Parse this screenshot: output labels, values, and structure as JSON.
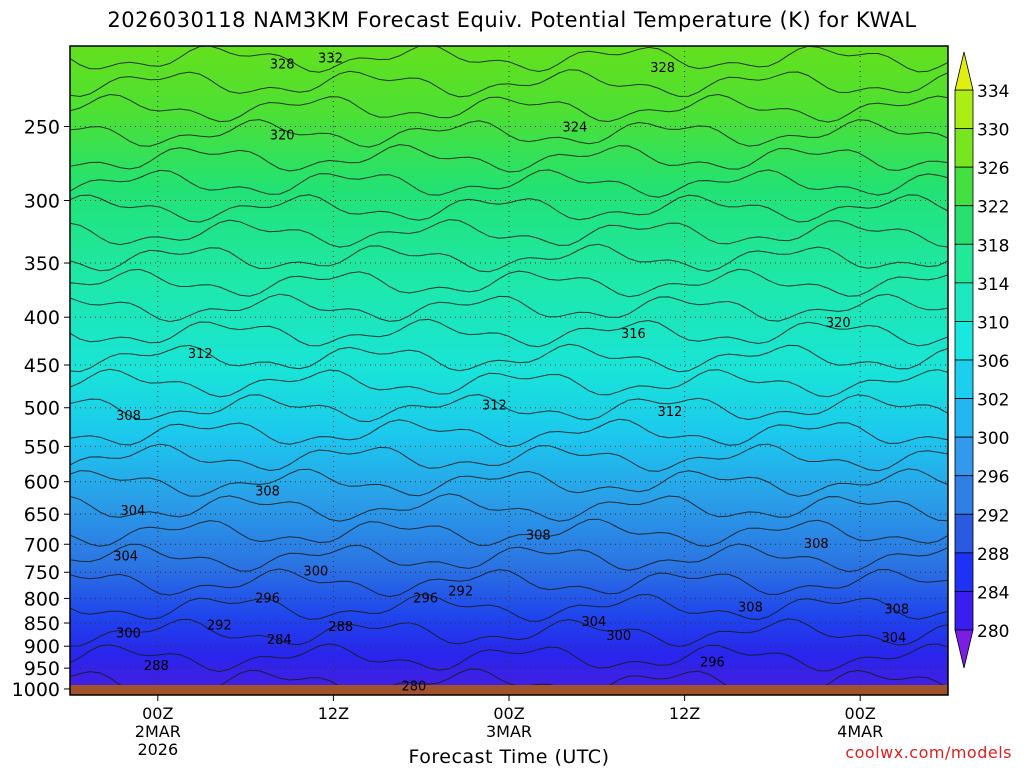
{
  "chart_data": {
    "type": "heatmap",
    "title": "2026030118 NAM3KM Forecast Equiv. Potential Temperature (K) for KWAL",
    "xlabel": "Forecast Time (UTC)",
    "ylabel": "",
    "x_ticks": [
      {
        "hour": 6,
        "lines": [
          "00Z",
          "2MAR",
          "2026"
        ]
      },
      {
        "hour": 18,
        "lines": [
          "12Z"
        ]
      },
      {
        "hour": 30,
        "lines": [
          "00Z",
          "3MAR"
        ]
      },
      {
        "hour": 42,
        "lines": [
          "12Z"
        ]
      },
      {
        "hour": 54,
        "lines": [
          "00Z",
          "4MAR"
        ]
      }
    ],
    "x_range_hours": [
      0,
      60
    ],
    "y_range_hPa": [
      1015,
      205
    ],
    "y_scale": "log-pressure",
    "y_ticks": [
      250,
      300,
      350,
      400,
      450,
      500,
      550,
      600,
      650,
      700,
      750,
      800,
      850,
      900,
      950,
      1000
    ],
    "colorbar": {
      "ticks": [
        280,
        284,
        288,
        292,
        296,
        300,
        302,
        306,
        310,
        314,
        318,
        322,
        326,
        330,
        334
      ],
      "colors": [
        "#7a1ee6",
        "#3a1ef0",
        "#1e32f5",
        "#2a5ae0",
        "#2f7fe6",
        "#3399ee",
        "#23b6f0",
        "#1ccfee",
        "#19e8e0",
        "#1ee8bf",
        "#22e89a",
        "#28e070",
        "#42e040",
        "#78e61e",
        "#aaee14",
        "#dff010"
      ],
      "extend": "both"
    },
    "contour_labels": [
      {
        "hour": 14.5,
        "hPa": 214,
        "value": "328"
      },
      {
        "hour": 17.8,
        "hPa": 211,
        "value": "332"
      },
      {
        "hour": 40.5,
        "hPa": 216,
        "value": "328"
      },
      {
        "hour": 14.5,
        "hPa": 255,
        "value": "320"
      },
      {
        "hour": 34.5,
        "hPa": 250,
        "value": "324"
      },
      {
        "hour": 8.9,
        "hPa": 437,
        "value": "312"
      },
      {
        "hour": 38.5,
        "hPa": 416,
        "value": "316"
      },
      {
        "hour": 52.5,
        "hPa": 405,
        "value": "320"
      },
      {
        "hour": 29.0,
        "hPa": 496,
        "value": "312"
      },
      {
        "hour": 41.0,
        "hPa": 504,
        "value": "312"
      },
      {
        "hour": 4.0,
        "hPa": 509,
        "value": "308"
      },
      {
        "hour": 4.3,
        "hPa": 643,
        "value": "304"
      },
      {
        "hour": 13.5,
        "hPa": 613,
        "value": "308"
      },
      {
        "hour": 3.8,
        "hPa": 720,
        "value": "304"
      },
      {
        "hour": 16.8,
        "hPa": 747,
        "value": "300"
      },
      {
        "hour": 32.0,
        "hPa": 683,
        "value": "308"
      },
      {
        "hour": 51.0,
        "hPa": 698,
        "value": "308"
      },
      {
        "hour": 13.5,
        "hPa": 798,
        "value": "296"
      },
      {
        "hour": 24.3,
        "hPa": 798,
        "value": "296"
      },
      {
        "hour": 26.7,
        "hPa": 785,
        "value": "292"
      },
      {
        "hour": 10.2,
        "hPa": 853,
        "value": "292"
      },
      {
        "hour": 18.5,
        "hPa": 856,
        "value": "288"
      },
      {
        "hour": 4.0,
        "hPa": 870,
        "value": "300"
      },
      {
        "hour": 14.3,
        "hPa": 884,
        "value": "284"
      },
      {
        "hour": 35.8,
        "hPa": 846,
        "value": "304"
      },
      {
        "hour": 37.5,
        "hPa": 875,
        "value": "300"
      },
      {
        "hour": 46.5,
        "hPa": 816,
        "value": "308"
      },
      {
        "hour": 56.5,
        "hPa": 820,
        "value": "308"
      },
      {
        "hour": 56.3,
        "hPa": 880,
        "value": "304"
      },
      {
        "hour": 43.9,
        "hPa": 934,
        "value": "296"
      },
      {
        "hour": 5.9,
        "hPa": 943,
        "value": "288"
      },
      {
        "hour": 23.5,
        "hPa": 991,
        "value": "280"
      }
    ]
  },
  "footer": {
    "credit": "coolwx.com/models"
  }
}
